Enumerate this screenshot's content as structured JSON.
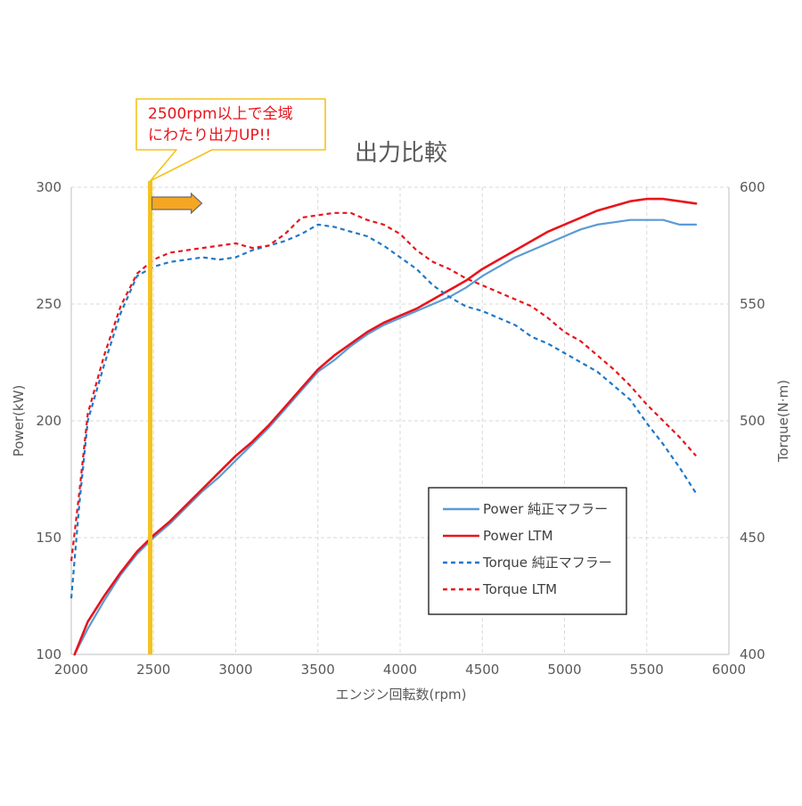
{
  "chart_data": {
    "type": "line",
    "title": "出力比較",
    "xlabel": "エンジン回転数(rpm)",
    "ylabel_left": "Power(kW)",
    "ylabel_right": "Torque(N·m)",
    "xlim": [
      2000,
      6000
    ],
    "ylim_left": [
      100,
      300
    ],
    "ylim_right": [
      400,
      600
    ],
    "x_ticks": [
      "2000",
      "2500",
      "3000",
      "3500",
      "4000",
      "4500",
      "5000",
      "5500",
      "6000"
    ],
    "y_left_ticks": [
      "100",
      "150",
      "200",
      "250",
      "300"
    ],
    "y_right_ticks": [
      "400",
      "450",
      "500",
      "550",
      "600"
    ],
    "grid": true,
    "legend_position": "lower-right inside plot",
    "series": [
      {
        "name": "Power 純正マフラー",
        "axis": "left",
        "style": "solid",
        "color": "#5b9bd5",
        "x": [
          2020,
          2100,
          2200,
          2300,
          2400,
          2500,
          2600,
          2700,
          2800,
          2900,
          3000,
          3100,
          3200,
          3300,
          3400,
          3500,
          3600,
          3700,
          3800,
          3900,
          4000,
          4100,
          4200,
          4300,
          4400,
          4500,
          4600,
          4700,
          4800,
          4900,
          5000,
          5100,
          5200,
          5300,
          5400,
          5500,
          5600,
          5700,
          5800
        ],
        "values": [
          100,
          111,
          123,
          134,
          143,
          150,
          156,
          163,
          170,
          176,
          183,
          190,
          197,
          205,
          213,
          221,
          226,
          232,
          237,
          241,
          244,
          247,
          250,
          253,
          257,
          262,
          266,
          270,
          273,
          276,
          279,
          282,
          284,
          285,
          286,
          286,
          286,
          284,
          284
        ]
      },
      {
        "name": "Power LTM",
        "axis": "left",
        "style": "solid",
        "color": "#e8141c",
        "x": [
          2020,
          2100,
          2200,
          2300,
          2400,
          2500,
          2600,
          2700,
          2800,
          2900,
          3000,
          3100,
          3200,
          3300,
          3400,
          3500,
          3600,
          3700,
          3800,
          3900,
          4000,
          4100,
          4200,
          4300,
          4400,
          4500,
          4600,
          4700,
          4800,
          4900,
          5000,
          5100,
          5200,
          5300,
          5400,
          5500,
          5600,
          5700,
          5800
        ],
        "values": [
          100,
          114,
          125,
          135,
          144,
          151,
          157,
          164,
          171,
          178,
          185,
          191,
          198,
          206,
          214,
          222,
          228,
          233,
          238,
          242,
          245,
          248,
          252,
          256,
          260,
          265,
          269,
          273,
          277,
          281,
          284,
          287,
          290,
          292,
          294,
          295,
          295,
          294,
          293
        ]
      },
      {
        "name": "Torque 純正マフラー",
        "axis": "right",
        "style": "dashed",
        "color": "#1f78c8",
        "x": [
          2000,
          2050,
          2100,
          2200,
          2300,
          2400,
          2500,
          2600,
          2700,
          2800,
          2900,
          3000,
          3100,
          3200,
          3300,
          3400,
          3500,
          3600,
          3700,
          3800,
          3900,
          4000,
          4100,
          4200,
          4300,
          4400,
          4500,
          4600,
          4700,
          4800,
          4900,
          5000,
          5100,
          5200,
          5300,
          5400,
          5500,
          5600,
          5700,
          5800
        ],
        "values": [
          424,
          465,
          500,
          524,
          546,
          562,
          566,
          568,
          569,
          570,
          569,
          570,
          573,
          575,
          577,
          580,
          584,
          583,
          581,
          579,
          575,
          570,
          565,
          558,
          553,
          549,
          547,
          544,
          541,
          536,
          533,
          529,
          525,
          521,
          515,
          509,
          499,
          490,
          480,
          469
        ]
      },
      {
        "name": "Torque LTM",
        "axis": "right",
        "style": "dashed",
        "color": "#e8141c",
        "x": [
          2000,
          2050,
          2100,
          2200,
          2300,
          2400,
          2500,
          2600,
          2700,
          2800,
          2900,
          3000,
          3100,
          3200,
          3300,
          3400,
          3500,
          3600,
          3700,
          3800,
          3900,
          4000,
          4100,
          4200,
          4300,
          4400,
          4500,
          4600,
          4700,
          4800,
          4900,
          5000,
          5100,
          5200,
          5300,
          5400,
          5500,
          5600,
          5700,
          5800
        ],
        "values": [
          440,
          470,
          503,
          528,
          549,
          563,
          569,
          572,
          573,
          574,
          575,
          576,
          574,
          575,
          580,
          587,
          588,
          589,
          589,
          586,
          584,
          580,
          573,
          568,
          565,
          561,
          558,
          555,
          552,
          549,
          544,
          538,
          534,
          528,
          522,
          515,
          507,
          500,
          493,
          485
        ]
      }
    ],
    "annotation": {
      "marker_x": 2480,
      "marker_color": "#f5c21b",
      "arrow_color": "#f5a623",
      "callout_lines": [
        "2500rpm以上で全域",
        "にわたり出力UP!!"
      ],
      "callout_text_color": "#e8141c",
      "callout_border_color": "#f5c21b"
    }
  }
}
